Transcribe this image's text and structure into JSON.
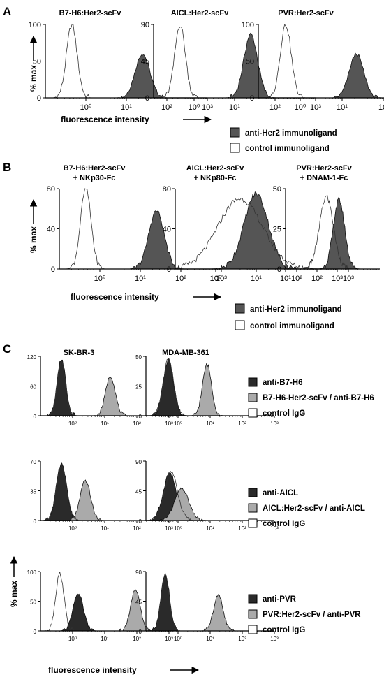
{
  "panels": [
    {
      "label": "A",
      "chart_data": [
        {
          "type": "histogram",
          "title": "B7-H6:Her2-scFv",
          "ylabel": "% max",
          "xlabel": "fluorescence intensity",
          "x_scale": "log",
          "xlim": [
            0.1,
            1000
          ],
          "ylim": [
            0,
            100
          ],
          "y_ticks": [
            "0",
            "50",
            "100"
          ],
          "x_ticks": [
            "10⁰",
            "10¹",
            "10²",
            "10³"
          ],
          "series": [
            {
              "name": "anti-Her2 immunoligand",
              "fill": "#555555",
              "peak_x": 25,
              "peak_y": 60,
              "width": 0.18
            },
            {
              "name": "control immunoligand",
              "fill": "none",
              "peak_x": 0.45,
              "peak_y": 100,
              "width": 0.13
            }
          ]
        },
        {
          "type": "histogram",
          "title": "AICL:Her2-scFv",
          "x_scale": "log",
          "xlim": [
            0.1,
            1000
          ],
          "ylim": [
            0,
            90
          ],
          "y_ticks": [
            "0",
            "45",
            "90"
          ],
          "x_ticks": [
            "10⁰",
            "10¹",
            "10²",
            "10³"
          ],
          "series": [
            {
              "name": "anti-Her2 immunoligand",
              "fill": "#555555",
              "peak_x": 25,
              "peak_y": 78,
              "width": 0.17
            },
            {
              "name": "control immunoligand",
              "fill": "none",
              "peak_x": 0.45,
              "peak_y": 90,
              "width": 0.13
            }
          ]
        },
        {
          "type": "histogram",
          "title": "PVR:Her2-scFv",
          "x_scale": "log",
          "xlim": [
            0.1,
            1000
          ],
          "ylim": [
            0,
            100
          ],
          "y_ticks": [
            "0",
            "50",
            "100"
          ],
          "x_ticks": [
            "10⁰",
            "10¹",
            "10²",
            "10³"
          ],
          "series": [
            {
              "name": "anti-Her2 immunoligand",
              "fill": "#555555",
              "peak_x": 22,
              "peak_y": 60,
              "width": 0.17
            },
            {
              "name": "control immunoligand",
              "fill": "none",
              "peak_x": 0.45,
              "peak_y": 100,
              "width": 0.13
            }
          ]
        }
      ],
      "legend": [
        {
          "name": "anti-Her2 immunoligand",
          "fill": "#555555"
        },
        {
          "name": "control immunoligand",
          "fill": "#ffffff"
        }
      ]
    },
    {
      "label": "B",
      "chart_data": [
        {
          "type": "histogram",
          "title": "B7-H6:Her2-scFv",
          "title2": "+ NKp30-Fc",
          "ylabel": "% max",
          "xlabel": "fluorescence intensity",
          "x_scale": "log",
          "xlim": [
            0.1,
            1000
          ],
          "ylim": [
            0,
            80
          ],
          "y_ticks": [
            "0",
            "40",
            "80"
          ],
          "x_ticks": [
            "10⁰",
            "10¹",
            "10²",
            "10³"
          ],
          "series": [
            {
              "name": "anti-Her2 immunoligand",
              "fill": "#555555",
              "peak_x": 25,
              "peak_y": 58,
              "width": 0.19
            },
            {
              "name": "control immunoligand",
              "fill": "none",
              "peak_x": 0.45,
              "peak_y": 80,
              "width": 0.13
            }
          ]
        },
        {
          "type": "histogram",
          "title": "AICL:Her2-scFv",
          "title2": "+ NKp80-Fc",
          "x_scale": "log",
          "xlim": [
            0.1,
            1000
          ],
          "ylim": [
            0,
            80
          ],
          "y_ticks": [
            "0",
            "40",
            "80"
          ],
          "x_ticks": [
            "10⁰",
            "10¹",
            "10²",
            "10³"
          ],
          "series": [
            {
              "name": "anti-Her2 immunoligand",
              "fill": "#555555",
              "peak_x": 10,
              "peak_y": 75,
              "width": 0.3
            },
            {
              "name": "control immunoligand",
              "fill": "none",
              "peak_x": 4,
              "peak_y": 70,
              "width": 0.55
            }
          ]
        },
        {
          "type": "histogram",
          "title": "PVR:Her2-scFv",
          "title2": "+ DNAM-1-Fc",
          "x_scale": "log",
          "xlim": [
            1,
            1000
          ],
          "ylim": [
            0,
            50
          ],
          "y_ticks": [
            "0",
            "25",
            "50"
          ],
          "x_ticks": [
            "10¹",
            "10²",
            "10³"
          ],
          "series": [
            {
              "name": "anti-Her2 immunoligand",
              "fill": "#555555",
              "peak_x": 50,
              "peak_y": 43,
              "width": 0.18
            },
            {
              "name": "control immunoligand",
              "fill": "none",
              "peak_x": 20,
              "peak_y": 45,
              "width": 0.22
            }
          ]
        }
      ],
      "legend": [
        {
          "name": "anti-Her2 immunoligand",
          "fill": "#555555"
        },
        {
          "name": "control immunoligand",
          "fill": "#ffffff"
        }
      ]
    },
    {
      "label": "C",
      "column_titles": [
        "SK-BR-3",
        "MDA-MB-361"
      ],
      "ylabel": "% max",
      "xlabel": "fluorescence intensity",
      "rows": [
        {
          "chart_data": [
            {
              "type": "histogram",
              "x_scale": "log",
              "xlim": [
                0.1,
                1000
              ],
              "ylim": [
                0,
                120
              ],
              "y_ticks": [
                "0",
                "60",
                "120"
              ],
              "x_ticks": [
                "10⁰",
                "10¹",
                "10²",
                "10³"
              ],
              "series": [
                {
                  "name": "anti-B7-H6",
                  "fill": "#2a2a2a",
                  "peak_x": 0.45,
                  "peak_y": 115,
                  "width": 0.13
                },
                {
                  "name": "B7-H6-Her2-scFv / anti-B7-H6",
                  "fill": "#aaaaaa",
                  "peak_x": 15,
                  "peak_y": 80,
                  "width": 0.15
                },
                {
                  "name": "control IgG",
                  "fill": "none",
                  "peak_x": 0.45,
                  "peak_y": 108,
                  "width": 0.13
                }
              ]
            },
            {
              "type": "histogram",
              "x_scale": "log",
              "xlim": [
                0.1,
                1000
              ],
              "ylim": [
                0,
                50
              ],
              "y_ticks": [
                "0",
                "25",
                "50"
              ],
              "x_ticks": [
                "10⁰",
                "10¹",
                "10²",
                "10³"
              ],
              "series": [
                {
                  "name": "anti-B7-H6",
                  "fill": "#2a2a2a",
                  "peak_x": 0.5,
                  "peak_y": 47,
                  "width": 0.16
                },
                {
                  "name": "B7-H6-Her2-scFv / anti-B7-H6",
                  "fill": "#aaaaaa",
                  "peak_x": 8,
                  "peak_y": 43,
                  "width": 0.14
                },
                {
                  "name": "control IgG",
                  "fill": "none",
                  "peak_x": 0.5,
                  "peak_y": 48,
                  "width": 0.16
                }
              ]
            }
          ],
          "legend": [
            {
              "name": "anti-B7-H6",
              "fill": "#2a2a2a"
            },
            {
              "name": "B7-H6-Her2-scFv / anti-B7-H6",
              "fill": "#aaaaaa"
            },
            {
              "name": "control IgG",
              "fill": "#ffffff"
            }
          ]
        },
        {
          "chart_data": [
            {
              "type": "histogram",
              "x_scale": "log",
              "xlim": [
                0.1,
                1000
              ],
              "ylim": [
                0,
                70
              ],
              "y_ticks": [
                "0",
                "35",
                "70"
              ],
              "x_ticks": [
                "10⁰",
                "10¹",
                "10²",
                "10³"
              ],
              "series": [
                {
                  "name": "anti-AICL",
                  "fill": "#2a2a2a",
                  "peak_x": 0.45,
                  "peak_y": 66,
                  "width": 0.16
                },
                {
                  "name": "AICL:Her2-scFv / anti-AICL",
                  "fill": "#aaaaaa",
                  "peak_x": 2.5,
                  "peak_y": 47,
                  "width": 0.16
                },
                {
                  "name": "control IgG",
                  "fill": "none",
                  "peak_x": 0.45,
                  "peak_y": 64,
                  "width": 0.16
                }
              ]
            },
            {
              "type": "histogram",
              "x_scale": "log",
              "xlim": [
                0.1,
                1000
              ],
              "ylim": [
                0,
                90
              ],
              "y_ticks": [
                "0",
                "45",
                "90"
              ],
              "x_ticks": [
                "10⁰",
                "10¹",
                "10²",
                "10³"
              ],
              "series": [
                {
                  "name": "anti-AICL",
                  "fill": "#2a2a2a",
                  "peak_x": 0.55,
                  "peak_y": 72,
                  "width": 0.2
                },
                {
                  "name": "AICL:Her2-scFv / anti-AICL",
                  "fill": "#aaaaaa",
                  "peak_x": 1.3,
                  "peak_y": 48,
                  "width": 0.22
                },
                {
                  "name": "control IgG",
                  "fill": "none",
                  "peak_x": 0.6,
                  "peak_y": 74,
                  "width": 0.2
                }
              ]
            }
          ],
          "legend": [
            {
              "name": "anti-AICL",
              "fill": "#2a2a2a"
            },
            {
              "name": "AICL:Her2-scFv / anti-AICL",
              "fill": "#aaaaaa"
            },
            {
              "name": "control IgG",
              "fill": "#ffffff"
            }
          ]
        },
        {
          "chart_data": [
            {
              "type": "histogram",
              "x_scale": "log",
              "xlim": [
                0.1,
                1000
              ],
              "ylim": [
                0,
                100
              ],
              "y_ticks": [
                "0",
                "50",
                "100"
              ],
              "x_ticks": [
                "10⁰",
                "10¹",
                "10²",
                "10³"
              ],
              "series": [
                {
                  "name": "anti-PVR",
                  "fill": "#2a2a2a",
                  "peak_x": 1.5,
                  "peak_y": 63,
                  "width": 0.16
                },
                {
                  "name": "PVR:Her2-scFv / anti-PVR",
                  "fill": "#aaaaaa",
                  "peak_x": 90,
                  "peak_y": 68,
                  "width": 0.15
                },
                {
                  "name": "control IgG",
                  "fill": "none",
                  "peak_x": 0.4,
                  "peak_y": 97,
                  "width": 0.13
                }
              ]
            },
            {
              "type": "histogram",
              "x_scale": "log",
              "xlim": [
                0.1,
                1000
              ],
              "ylim": [
                0,
                90
              ],
              "y_ticks": [
                "0",
                "45",
                "90"
              ],
              "x_ticks": [
                "10⁰",
                "10¹",
                "10²",
                "10³"
              ],
              "series": [
                {
                  "name": "anti-PVR",
                  "fill": "#2a2a2a",
                  "peak_x": 0.4,
                  "peak_y": 87,
                  "width": 0.13
                },
                {
                  "name": "PVR:Her2-scFv / anti-PVR",
                  "fill": "#aaaaaa",
                  "peak_x": 18,
                  "peak_y": 54,
                  "width": 0.15
                },
                {
                  "name": "control IgG",
                  "fill": "none",
                  "peak_x": 0.4,
                  "peak_y": 84,
                  "width": 0.13
                }
              ]
            }
          ],
          "legend": [
            {
              "name": "anti-PVR",
              "fill": "#2a2a2a"
            },
            {
              "name": "PVR:Her2-scFv / anti-PVR",
              "fill": "#aaaaaa"
            },
            {
              "name": "control IgG",
              "fill": "#ffffff"
            }
          ]
        }
      ]
    }
  ]
}
